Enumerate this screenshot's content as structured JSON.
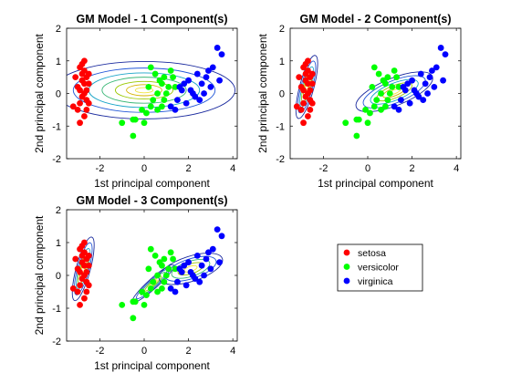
{
  "figure": {
    "legend": {
      "entries": [
        {
          "label": "setosa",
          "color": "#ff0000"
        },
        {
          "label": "versicolor",
          "color": "#00ff00"
        },
        {
          "label": "virginica",
          "color": "#0000ff"
        }
      ]
    }
  },
  "chart_data": [
    {
      "type": "scatter",
      "title": "GM Model - 1 Component(s)",
      "xlabel": "1st principal component",
      "ylabel": "2nd principal component",
      "xlim": [
        -3.5,
        4.2
      ],
      "ylim": [
        -2,
        2
      ],
      "xticks": [
        -2,
        0,
        2,
        4
      ],
      "yticks": [
        -2,
        -1,
        0,
        1,
        2
      ],
      "series": [
        {
          "name": "setosa",
          "color": "#ff0000",
          "points": [
            [
              -2.7,
              0.3
            ],
            [
              -2.8,
              0.6
            ],
            [
              -2.6,
              -0.2
            ],
            [
              -2.9,
              0.1
            ],
            [
              -2.7,
              0.0
            ],
            [
              -2.5,
              0.3
            ],
            [
              -2.8,
              0.9
            ],
            [
              -3.1,
              0.5
            ],
            [
              -2.6,
              -0.5
            ],
            [
              -2.9,
              -0.3
            ],
            [
              -2.7,
              0.7
            ],
            [
              -3.0,
              0.2
            ],
            [
              -2.6,
              0.5
            ],
            [
              -2.8,
              -0.1
            ],
            [
              -2.5,
              -0.3
            ],
            [
              -3.0,
              -0.5
            ],
            [
              -2.7,
              1.0
            ],
            [
              -2.9,
              0.8
            ],
            [
              -2.6,
              0.1
            ],
            [
              -2.8,
              0.4
            ],
            [
              -2.9,
              -0.9
            ],
            [
              -3.2,
              -0.4
            ],
            [
              -2.7,
              -0.7
            ],
            [
              -2.5,
              0.6
            ]
          ]
        },
        {
          "name": "versicolor",
          "color": "#00ff00",
          "points": [
            [
              0.5,
              0.6
            ],
            [
              0.8,
              0.3
            ],
            [
              1.2,
              0.7
            ],
            [
              0.1,
              -0.6
            ],
            [
              0.3,
              -0.4
            ],
            [
              -0.4,
              -0.8
            ],
            [
              0.9,
              -0.2
            ],
            [
              1.1,
              0.2
            ],
            [
              0.6,
              0.0
            ],
            [
              -0.1,
              -0.5
            ],
            [
              1.3,
              0.5
            ],
            [
              0.2,
              0.2
            ],
            [
              0.4,
              -0.2
            ],
            [
              0.7,
              0.4
            ],
            [
              -0.5,
              -0.8
            ],
            [
              0.0,
              -0.9
            ],
            [
              0.9,
              0.5
            ],
            [
              1.0,
              0.0
            ],
            [
              -1.0,
              -0.9
            ],
            [
              -0.5,
              -1.3
            ],
            [
              0.3,
              0.8
            ],
            [
              0.6,
              -0.5
            ],
            [
              1.4,
              0.2
            ],
            [
              0.8,
              -0.4
            ]
          ]
        },
        {
          "name": "virginica",
          "color": "#0000ff",
          "points": [
            [
              1.7,
              0.1
            ],
            [
              2.0,
              0.4
            ],
            [
              2.6,
              0.3
            ],
            [
              2.2,
              0.0
            ],
            [
              2.8,
              0.5
            ],
            [
              1.5,
              -0.2
            ],
            [
              1.9,
              -0.3
            ],
            [
              2.4,
              0.6
            ],
            [
              3.1,
              0.8
            ],
            [
              1.8,
              0.3
            ],
            [
              2.1,
              0.1
            ],
            [
              3.3,
              1.4
            ],
            [
              3.5,
              1.2
            ],
            [
              3.0,
              0.2
            ],
            [
              1.4,
              -0.5
            ],
            [
              2.3,
              -0.1
            ],
            [
              1.6,
              0.2
            ],
            [
              2.7,
              0.0
            ],
            [
              3.4,
              0.4
            ],
            [
              2.5,
              -0.2
            ],
            [
              1.2,
              -0.4
            ],
            [
              2.9,
              0.7
            ]
          ]
        }
      ],
      "contours": [
        {
          "center": [
            0.0,
            0.1
          ],
          "rx": [
            0.4,
            0.8,
            1.3,
            1.9,
            2.5,
            3.2,
            4.1
          ],
          "ry": [
            0.08,
            0.17,
            0.27,
            0.4,
            0.53,
            0.68,
            0.88
          ]
        }
      ]
    },
    {
      "type": "scatter",
      "title": "GM Model - 2 Component(s)",
      "xlabel": "1st principal component",
      "ylabel": "2nd principal component",
      "xlim": [
        -3.5,
        4.2
      ],
      "ylim": [
        -2,
        2
      ],
      "xticks": [
        -2,
        0,
        2,
        4
      ],
      "yticks": [
        -2,
        -1,
        0,
        1,
        2
      ],
      "series": [
        {
          "name": "setosa",
          "color": "#ff0000",
          "points": [
            [
              -2.7,
              0.3
            ],
            [
              -2.8,
              0.6
            ],
            [
              -2.6,
              -0.2
            ],
            [
              -2.9,
              0.1
            ],
            [
              -2.7,
              0.0
            ],
            [
              -2.5,
              0.3
            ],
            [
              -2.8,
              0.9
            ],
            [
              -3.1,
              0.5
            ],
            [
              -2.6,
              -0.5
            ],
            [
              -2.9,
              -0.3
            ],
            [
              -2.7,
              0.7
            ],
            [
              -3.0,
              0.2
            ],
            [
              -2.6,
              0.5
            ],
            [
              -2.8,
              -0.1
            ],
            [
              -2.5,
              -0.3
            ],
            [
              -3.0,
              -0.5
            ],
            [
              -2.7,
              1.0
            ],
            [
              -2.9,
              0.8
            ],
            [
              -2.6,
              0.1
            ],
            [
              -2.8,
              0.4
            ],
            [
              -2.9,
              -0.9
            ],
            [
              -3.2,
              -0.4
            ],
            [
              -2.7,
              -0.7
            ],
            [
              -2.5,
              0.6
            ]
          ]
        },
        {
          "name": "versicolor",
          "color": "#00ff00",
          "points": [
            [
              0.5,
              0.6
            ],
            [
              0.8,
              0.3
            ],
            [
              1.2,
              0.7
            ],
            [
              0.1,
              -0.6
            ],
            [
              0.3,
              -0.4
            ],
            [
              -0.4,
              -0.8
            ],
            [
              0.9,
              -0.2
            ],
            [
              1.1,
              0.2
            ],
            [
              0.6,
              0.0
            ],
            [
              -0.1,
              -0.5
            ],
            [
              1.3,
              0.5
            ],
            [
              0.2,
              0.2
            ],
            [
              0.4,
              -0.2
            ],
            [
              0.7,
              0.4
            ],
            [
              -0.5,
              -0.8
            ],
            [
              0.0,
              -0.9
            ],
            [
              0.9,
              0.5
            ],
            [
              1.0,
              0.0
            ],
            [
              -1.0,
              -0.9
            ],
            [
              -0.5,
              -1.3
            ],
            [
              0.3,
              0.8
            ],
            [
              0.6,
              -0.5
            ],
            [
              1.4,
              0.2
            ],
            [
              0.8,
              -0.4
            ]
          ]
        },
        {
          "name": "virginica",
          "color": "#0000ff",
          "points": [
            [
              1.7,
              0.1
            ],
            [
              2.0,
              0.4
            ],
            [
              2.6,
              0.3
            ],
            [
              2.2,
              0.0
            ],
            [
              2.8,
              0.5
            ],
            [
              1.5,
              -0.2
            ],
            [
              1.9,
              -0.3
            ],
            [
              2.4,
              0.6
            ],
            [
              3.1,
              0.8
            ],
            [
              1.8,
              0.3
            ],
            [
              2.1,
              0.1
            ],
            [
              3.3,
              1.4
            ],
            [
              3.5,
              1.2
            ],
            [
              3.0,
              0.2
            ],
            [
              1.4,
              -0.5
            ],
            [
              2.3,
              -0.1
            ],
            [
              1.6,
              0.2
            ],
            [
              2.7,
              0.0
            ],
            [
              3.4,
              0.4
            ],
            [
              2.5,
              -0.2
            ],
            [
              1.2,
              -0.4
            ],
            [
              2.9,
              0.7
            ]
          ]
        }
      ],
      "contours": [
        {
          "center": [
            -2.75,
            0.2
          ],
          "rx": [
            0.06,
            0.1,
            0.15,
            0.2,
            0.26,
            0.32
          ],
          "ry": [
            0.18,
            0.32,
            0.48,
            0.64,
            0.82,
            1.0
          ],
          "angle": -15
        },
        {
          "center": [
            1.2,
            0.05
          ],
          "rx": [
            0.3,
            0.55,
            0.85,
            1.15,
            1.5,
            1.85
          ],
          "ry": [
            0.06,
            0.12,
            0.19,
            0.26,
            0.34,
            0.42
          ],
          "angle": 22
        }
      ]
    },
    {
      "type": "scatter",
      "title": "GM Model - 3 Component(s)",
      "xlabel": "1st principal component",
      "ylabel": "2nd principal component",
      "xlim": [
        -3.5,
        4.2
      ],
      "ylim": [
        -2,
        2
      ],
      "xticks": [
        -2,
        0,
        2,
        4
      ],
      "yticks": [
        -2,
        -1,
        0,
        1,
        2
      ],
      "series": [
        {
          "name": "setosa",
          "color": "#ff0000",
          "points": [
            [
              -2.7,
              0.3
            ],
            [
              -2.8,
              0.6
            ],
            [
              -2.6,
              -0.2
            ],
            [
              -2.9,
              0.1
            ],
            [
              -2.7,
              0.0
            ],
            [
              -2.5,
              0.3
            ],
            [
              -2.8,
              0.9
            ],
            [
              -3.1,
              0.5
            ],
            [
              -2.6,
              -0.5
            ],
            [
              -2.9,
              -0.3
            ],
            [
              -2.7,
              0.7
            ],
            [
              -3.0,
              0.2
            ],
            [
              -2.6,
              0.5
            ],
            [
              -2.8,
              -0.1
            ],
            [
              -2.5,
              -0.3
            ],
            [
              -3.0,
              -0.5
            ],
            [
              -2.7,
              1.0
            ],
            [
              -2.9,
              0.8
            ],
            [
              -2.6,
              0.1
            ],
            [
              -2.8,
              0.4
            ],
            [
              -2.9,
              -0.9
            ],
            [
              -3.2,
              -0.4
            ],
            [
              -2.7,
              -0.7
            ],
            [
              -2.5,
              0.6
            ]
          ]
        },
        {
          "name": "versicolor",
          "color": "#00ff00",
          "points": [
            [
              0.5,
              0.6
            ],
            [
              0.8,
              0.3
            ],
            [
              1.2,
              0.7
            ],
            [
              0.1,
              -0.6
            ],
            [
              0.3,
              -0.4
            ],
            [
              -0.4,
              -0.8
            ],
            [
              0.9,
              -0.2
            ],
            [
              1.1,
              0.2
            ],
            [
              0.6,
              0.0
            ],
            [
              -0.1,
              -0.5
            ],
            [
              1.3,
              0.5
            ],
            [
              0.2,
              0.2
            ],
            [
              0.4,
              -0.2
            ],
            [
              0.7,
              0.4
            ],
            [
              -0.5,
              -0.8
            ],
            [
              0.0,
              -0.9
            ],
            [
              0.9,
              0.5
            ],
            [
              1.0,
              0.0
            ],
            [
              -1.0,
              -0.9
            ],
            [
              -0.5,
              -1.3
            ],
            [
              0.3,
              0.8
            ],
            [
              0.6,
              -0.5
            ],
            [
              1.4,
              0.2
            ],
            [
              0.8,
              -0.4
            ]
          ]
        },
        {
          "name": "virginica",
          "color": "#0000ff",
          "points": [
            [
              1.7,
              0.1
            ],
            [
              2.0,
              0.4
            ],
            [
              2.6,
              0.3
            ],
            [
              2.2,
              0.0
            ],
            [
              2.8,
              0.5
            ],
            [
              1.5,
              -0.2
            ],
            [
              1.9,
              -0.3
            ],
            [
              2.4,
              0.6
            ],
            [
              3.1,
              0.8
            ],
            [
              1.8,
              0.3
            ],
            [
              2.1,
              0.1
            ],
            [
              3.3,
              1.4
            ],
            [
              3.5,
              1.2
            ],
            [
              3.0,
              0.2
            ],
            [
              1.4,
              -0.5
            ],
            [
              2.3,
              -0.1
            ],
            [
              1.6,
              0.2
            ],
            [
              2.7,
              0.0
            ],
            [
              3.4,
              0.4
            ],
            [
              2.5,
              -0.2
            ],
            [
              1.2,
              -0.4
            ],
            [
              2.9,
              0.7
            ]
          ]
        }
      ],
      "contours": [
        {
          "center": [
            -2.75,
            0.2
          ],
          "rx": [
            0.06,
            0.1,
            0.15,
            0.2,
            0.26,
            0.32
          ],
          "ry": [
            0.18,
            0.32,
            0.48,
            0.64,
            0.82,
            1.0
          ],
          "angle": -15
        },
        {
          "center": [
            0.4,
            -0.25
          ],
          "rx": [
            0.25,
            0.5,
            0.75,
            1.0,
            1.25
          ],
          "ry": [
            0.03,
            0.06,
            0.09,
            0.12,
            0.15
          ],
          "angle": 42
        },
        {
          "center": [
            2.1,
            0.2
          ],
          "rx": [
            0.3,
            0.6,
            0.9,
            1.2,
            1.5
          ],
          "ry": [
            0.08,
            0.15,
            0.23,
            0.3,
            0.38
          ],
          "angle": 18
        }
      ]
    }
  ]
}
